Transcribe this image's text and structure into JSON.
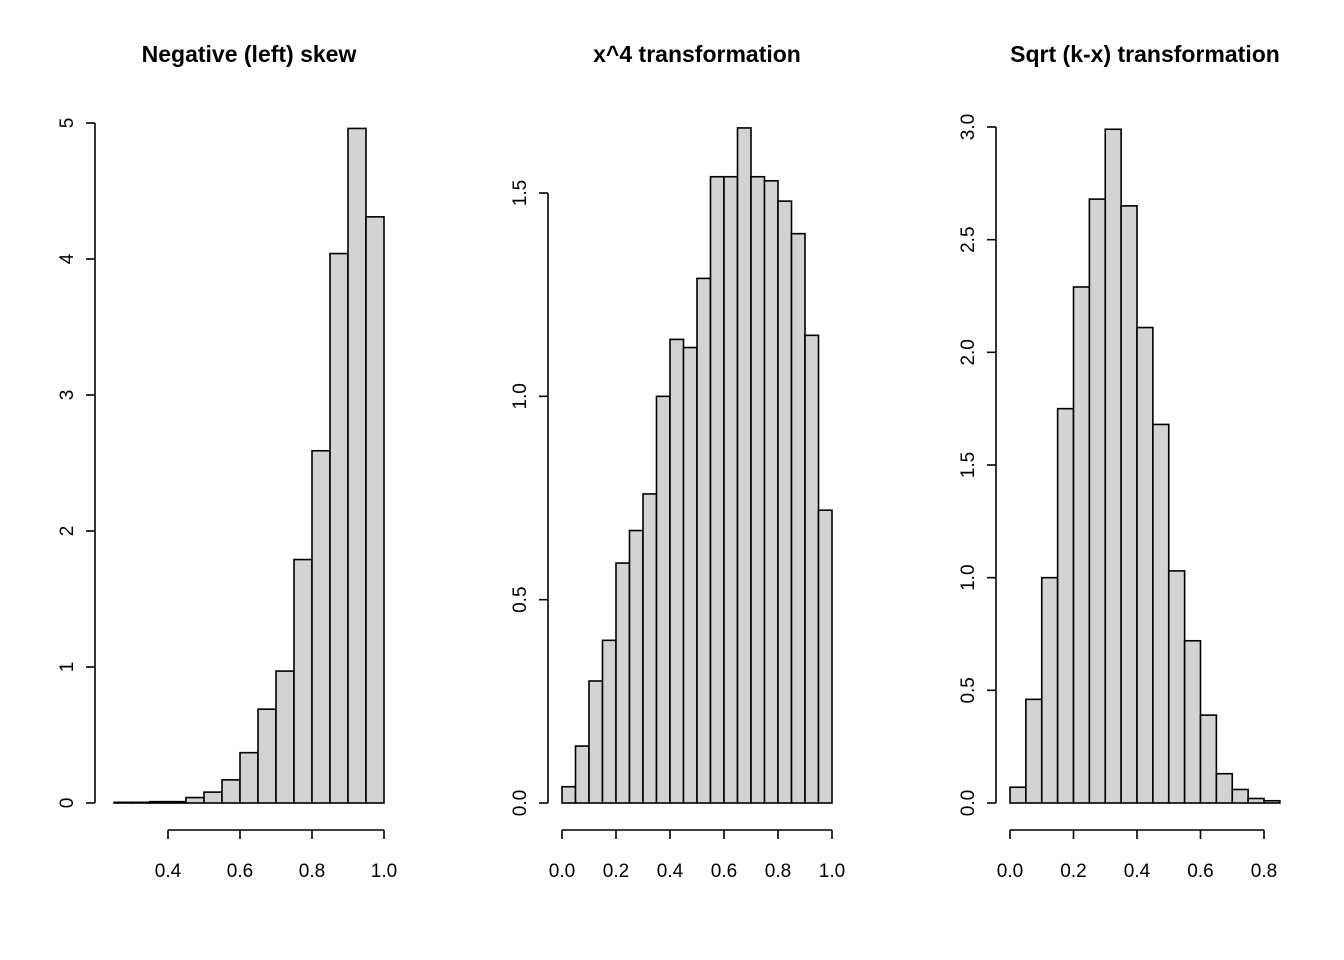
{
  "chart_data": [
    {
      "type": "bar",
      "title": "Negative (left) skew",
      "xlabel": "",
      "ylabel": "",
      "bin_width": 0.05,
      "bin_start": 0.25,
      "values": [
        0.005,
        0.005,
        0.01,
        0.01,
        0.04,
        0.08,
        0.17,
        0.37,
        0.69,
        0.97,
        1.79,
        2.59,
        4.04,
        4.96,
        4.31
      ],
      "xlim": [
        0.25,
        1.0
      ],
      "ylim": [
        0,
        5
      ],
      "x_ticks": [
        0.4,
        0.6,
        0.8,
        1.0
      ],
      "x_tick_labels": [
        "0.4",
        "0.6",
        "0.8",
        "1.0"
      ],
      "y_ticks": [
        0,
        1,
        2,
        3,
        4,
        5
      ],
      "y_tick_labels": [
        "0",
        "1",
        "2",
        "3",
        "4",
        "5"
      ]
    },
    {
      "type": "bar",
      "title": "x^4 transformation",
      "xlabel": "",
      "ylabel": "",
      "bin_width": 0.05,
      "bin_start": 0.0,
      "values": [
        0.04,
        0.14,
        0.3,
        0.4,
        0.59,
        0.67,
        0.76,
        1.0,
        1.14,
        1.12,
        1.29,
        1.54,
        1.54,
        1.66,
        1.54,
        1.53,
        1.48,
        1.4,
        1.15,
        0.72
      ],
      "xlim": [
        0,
        1.0
      ],
      "ylim": [
        0,
        1.5
      ],
      "x_ticks": [
        0.0,
        0.2,
        0.4,
        0.6,
        0.8,
        1.0
      ],
      "x_tick_labels": [
        "0.0",
        "0.2",
        "0.4",
        "0.6",
        "0.8",
        "1.0"
      ],
      "y_ticks": [
        0.0,
        0.5,
        1.0,
        1.5
      ],
      "y_tick_labels": [
        "0.0",
        "0.5",
        "1.0",
        "1.5"
      ]
    },
    {
      "type": "bar",
      "title": "Sqrt (k-x) transformation",
      "xlabel": "",
      "ylabel": "",
      "bin_width": 0.05,
      "bin_start": 0.0,
      "values": [
        0.07,
        0.46,
        1.0,
        1.75,
        2.29,
        2.68,
        2.99,
        2.65,
        2.11,
        1.68,
        1.03,
        0.72,
        0.39,
        0.13,
        0.06,
        0.02,
        0.01
      ],
      "xlim": [
        0,
        0.85
      ],
      "ylim": [
        0,
        3.0
      ],
      "x_ticks": [
        0.0,
        0.2,
        0.4,
        0.6,
        0.8
      ],
      "x_tick_labels": [
        "0.0",
        "0.2",
        "0.4",
        "0.6",
        "0.8"
      ],
      "y_ticks": [
        0.0,
        0.5,
        1.0,
        1.5,
        2.0,
        2.5,
        3.0
      ],
      "y_tick_labels": [
        "0.0",
        "0.5",
        "1.0",
        "1.5",
        "2.0",
        "2.5",
        "3.0"
      ]
    }
  ]
}
